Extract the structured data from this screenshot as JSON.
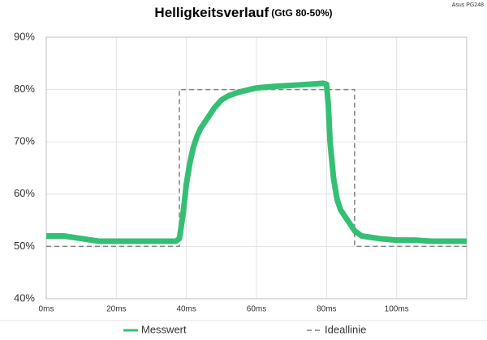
{
  "chart_data": {
    "type": "line",
    "title": "Helligkeitsverlauf",
    "subtitle": "(GtG 80-50%)",
    "corner_label": "Asus PG248",
    "xlim": [
      0,
      120
    ],
    "ylim": [
      40,
      90
    ],
    "xticks": [
      {
        "value": 0,
        "label": "0ms"
      },
      {
        "value": 20,
        "label": "20ms"
      },
      {
        "value": 40,
        "label": "40ms"
      },
      {
        "value": 60,
        "label": "60ms"
      },
      {
        "value": 80,
        "label": "80ms"
      },
      {
        "value": 100,
        "label": "100ms"
      }
    ],
    "yticks": [
      {
        "value": 40,
        "label": "40%"
      },
      {
        "value": 50,
        "label": "50%"
      },
      {
        "value": 60,
        "label": "60%"
      },
      {
        "value": 70,
        "label": "70%"
      },
      {
        "value": 80,
        "label": "80%"
      },
      {
        "value": 90,
        "label": "90%"
      }
    ],
    "grid": true,
    "series": [
      {
        "name": "Messwert",
        "color": "#35bf75",
        "style": "solid",
        "x": [
          0,
          5,
          10,
          15,
          20,
          25,
          30,
          35,
          37,
          38,
          39,
          40,
          41,
          42,
          43,
          44,
          45,
          46,
          48,
          50,
          52,
          55,
          58,
          60,
          65,
          70,
          75,
          79,
          80,
          80.5,
          81,
          82,
          83,
          84,
          85,
          86,
          87,
          88,
          90,
          95,
          100,
          105,
          110,
          115,
          120
        ],
        "values": [
          52,
          52,
          51.5,
          51,
          51,
          51,
          51,
          51,
          51,
          51.5,
          56,
          62,
          66,
          69,
          71,
          72.5,
          73.5,
          74.5,
          76.5,
          78,
          78.8,
          79.5,
          80,
          80.3,
          80.6,
          80.8,
          81,
          81.2,
          81,
          77,
          70,
          63,
          59,
          57,
          56,
          55,
          54,
          53,
          52,
          51.5,
          51.2,
          51.2,
          51,
          51,
          51
        ]
      },
      {
        "name": "Ideallinie",
        "color": "#808080",
        "style": "dashed",
        "x": [
          0,
          38,
          38,
          88,
          88,
          120
        ],
        "values": [
          50,
          50,
          80,
          80,
          50,
          50
        ]
      }
    ]
  }
}
